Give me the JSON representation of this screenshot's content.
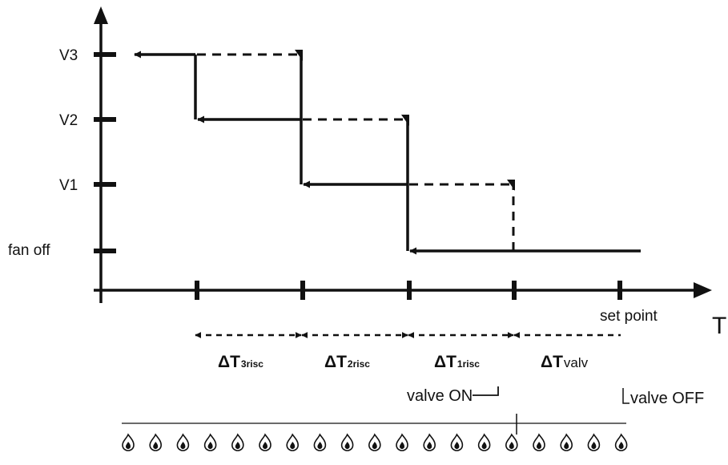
{
  "levels": {
    "v3": "V3",
    "v2": "V2",
    "v1": "V1",
    "fan_off": "fan off"
  },
  "axis": {
    "x_label": "T",
    "set_point": "set point"
  },
  "deltas": [
    {
      "main": "ΔT",
      "sub": "3risc"
    },
    {
      "main": "ΔT",
      "sub": "2risc"
    },
    {
      "main": "ΔT",
      "sub": "1risc"
    },
    {
      "main": "ΔT",
      "sub": "valv"
    }
  ],
  "valve": {
    "on": "valve ON",
    "off": "valve OFF"
  },
  "flames": {
    "icon": "flame-icon",
    "count": 19,
    "valve_on_index": 15
  }
}
